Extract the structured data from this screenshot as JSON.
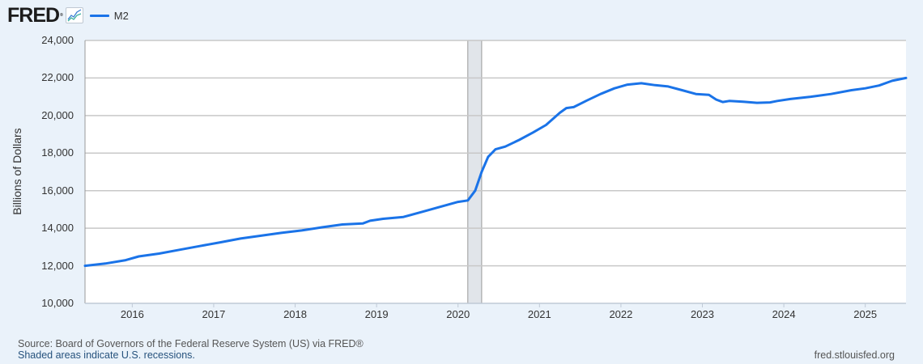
{
  "header": {
    "logo_text": "FRED",
    "logo_reg": "®",
    "logo_icon": "chart-line-icon",
    "legend": [
      {
        "label": "M2",
        "color": "#1a73e8"
      }
    ]
  },
  "footer": {
    "source": "Source: Board of Governors of the Federal Reserve System (US) via FRED®",
    "recession_note": "Shaded areas indicate U.S. recessions.",
    "url": "fred.stlouisfed.org"
  },
  "chart_data": {
    "type": "line",
    "title": "",
    "xlabel": "",
    "ylabel": "Billions of Dollars",
    "ylim": [
      10000,
      24000
    ],
    "yticks": [
      10000,
      12000,
      14000,
      16000,
      18000,
      20000,
      22000,
      24000
    ],
    "ytick_labels": [
      "10,000",
      "12,000",
      "14,000",
      "16,000",
      "18,000",
      "20,000",
      "22,000",
      "24,000"
    ],
    "xlim": [
      2015.42,
      2025.5
    ],
    "xticks": [
      2016,
      2017,
      2018,
      2019,
      2020,
      2021,
      2022,
      2023,
      2024,
      2025
    ],
    "xtick_labels": [
      "2016",
      "2017",
      "2018",
      "2019",
      "2020",
      "2021",
      "2022",
      "2023",
      "2024",
      "2025"
    ],
    "grid": true,
    "legend_position": "top-left",
    "recessions": [
      {
        "start": 2020.12,
        "end": 2020.29,
        "color": "#e1e5ea"
      }
    ],
    "series": [
      {
        "name": "M2",
        "color": "#1a73e8",
        "x": [
          2015.42,
          2015.67,
          2015.92,
          2016.08,
          2016.33,
          2016.58,
          2016.83,
          2017.08,
          2017.33,
          2017.58,
          2017.83,
          2018.08,
          2018.33,
          2018.58,
          2018.83,
          2018.92,
          2019.08,
          2019.33,
          2019.58,
          2019.83,
          2020.0,
          2020.12,
          2020.21,
          2020.29,
          2020.37,
          2020.46,
          2020.58,
          2020.75,
          2020.92,
          2021.08,
          2021.25,
          2021.33,
          2021.42,
          2021.58,
          2021.75,
          2021.92,
          2022.08,
          2022.25,
          2022.42,
          2022.58,
          2022.75,
          2022.92,
          2023.08,
          2023.17,
          2023.25,
          2023.33,
          2023.5,
          2023.67,
          2023.83,
          2023.92,
          2024.08,
          2024.33,
          2024.58,
          2024.83,
          2025.0,
          2025.17,
          2025.33,
          2025.5
        ],
        "values": [
          12000,
          12120,
          12300,
          12500,
          12650,
          12850,
          13050,
          13250,
          13450,
          13600,
          13750,
          13880,
          14050,
          14200,
          14250,
          14400,
          14500,
          14600,
          14900,
          15200,
          15400,
          15480,
          16000,
          17000,
          17800,
          18200,
          18350,
          18700,
          19100,
          19500,
          20150,
          20400,
          20450,
          20800,
          21150,
          21450,
          21650,
          21720,
          21620,
          21550,
          21350,
          21150,
          21100,
          20850,
          20720,
          20780,
          20740,
          20680,
          20700,
          20780,
          20880,
          21000,
          21150,
          21350,
          21450,
          21600,
          21850,
          22000
        ]
      }
    ]
  }
}
